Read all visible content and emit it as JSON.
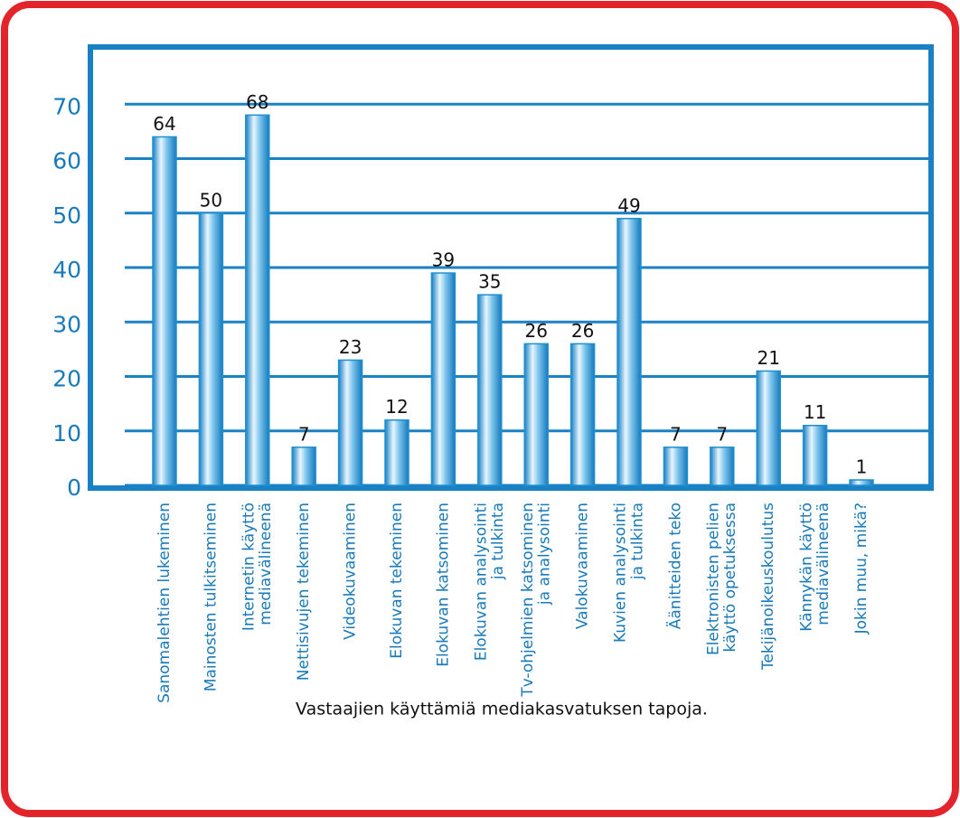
{
  "chart_data": {
    "type": "bar",
    "caption": "Vastaajien käyttämiä mediakasvatuksen tapoja.",
    "categories": [
      "Sanomalehtien lukeminen",
      "Mainosten tulkitseminen",
      "Internetin käyttö\nmediavälineenä",
      "Nettisivujen tekeminen",
      "Videokuvaaminen",
      "Elokuvan tekeminen",
      "Elokuvan katsominen",
      "Elokuvan analysointi\nja tulkinta",
      "Tv-ohjelmien katsominen\nja analysointi",
      "Valokuvaaminen",
      "Kuvien analysointi\nja tulkinta",
      "Äänitteiden teko",
      "Elektronisten pelien\nkäyttö opetuksessa",
      "Tekijänoikeuskoulutus",
      "Kännykän käyttö\nmediavälineenä",
      "Jokin muu, mikä?"
    ],
    "values": [
      64,
      50,
      68,
      7,
      23,
      12,
      39,
      35,
      26,
      26,
      49,
      7,
      7,
      21,
      11,
      1
    ],
    "color": "#1e90d0",
    "ylim": [
      0,
      80
    ],
    "yticks": [
      0,
      10,
      20,
      30,
      40,
      50,
      60,
      70
    ],
    "grid": true
  }
}
